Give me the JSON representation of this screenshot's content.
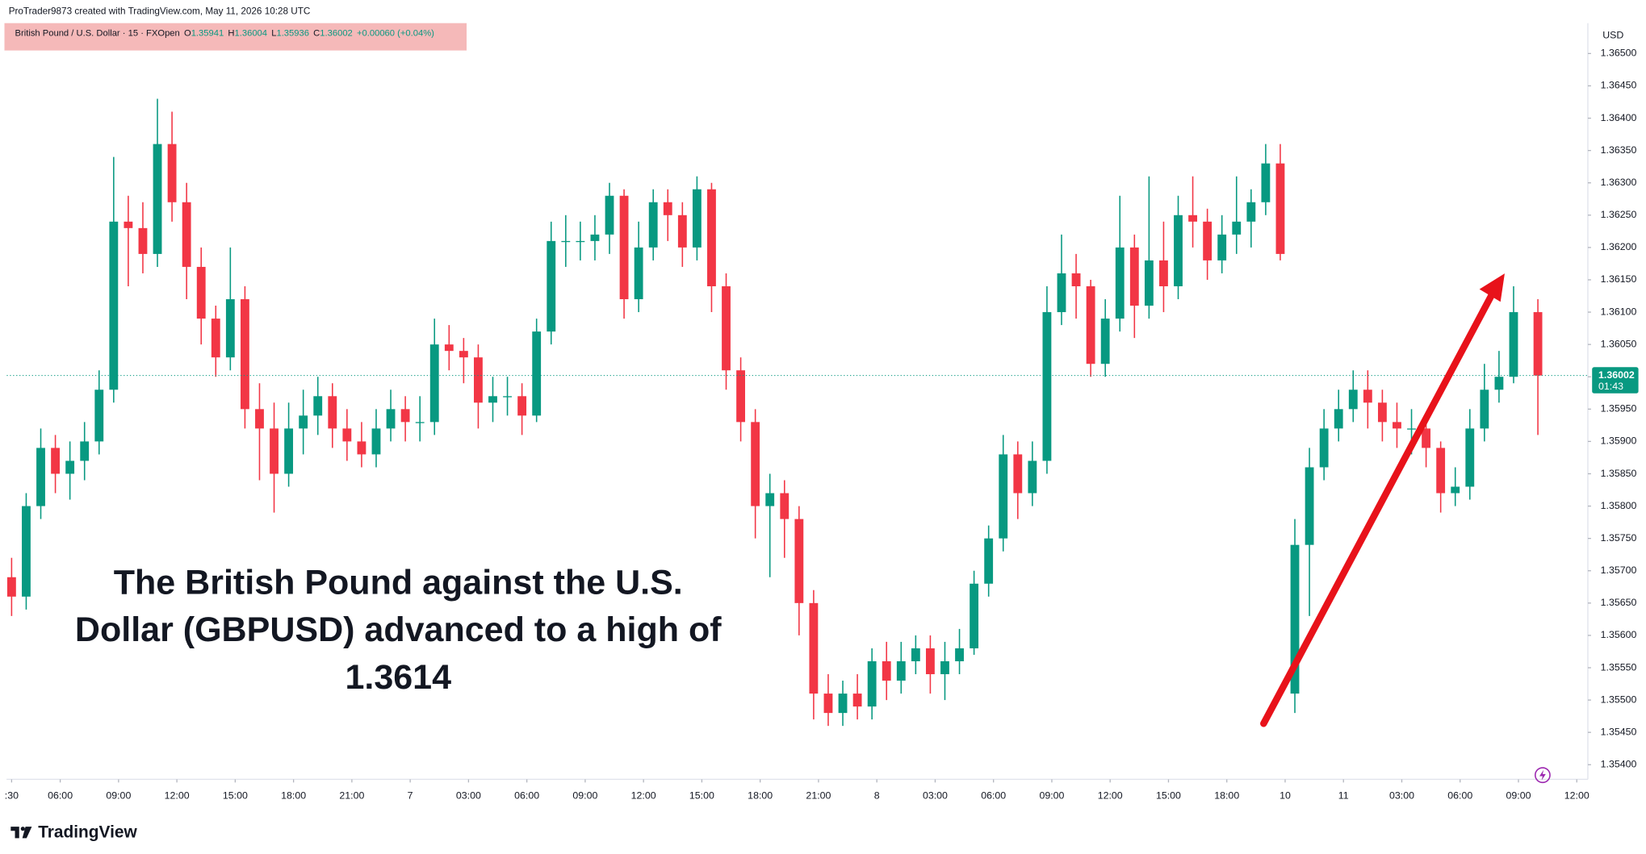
{
  "credit": "ProTrader9873 created with TradingView.com, May 11, 2026 10:28 UTC",
  "brand": "TradingView",
  "chart_data": {
    "type": "candlestick",
    "symbol": "British Pound / U.S. Dollar · 15 · FXOpen",
    "ohlc_legend": [
      {
        "label": "O",
        "value": 1.35941
      },
      {
        "label": "H",
        "value": 1.36004
      },
      {
        "label": "L",
        "value": 1.35936
      },
      {
        "label": "C",
        "value": 1.36002
      }
    ],
    "change": "+0.00060 (+0.04%)",
    "currency": "USD",
    "last_price": 1.36002,
    "countdown": "01:43",
    "annotation": [
      "The British Pound against the U.S.",
      "Dollar (GBPUSD) advanced to a high of",
      "1.3614"
    ],
    "up_color": "#089981",
    "down_color": "#f23645",
    "x": [
      0,
      3,
      6,
      9,
      12,
      15,
      18,
      21,
      24,
      27,
      30,
      33,
      36,
      39,
      42,
      45,
      48,
      51,
      54,
      57,
      60,
      63,
      66,
      69,
      72,
      75,
      78,
      81,
      84,
      87,
      90,
      93,
      96,
      99,
      102,
      105,
      108,
      111,
      114,
      117,
      120,
      123,
      126,
      129,
      132,
      135,
      138,
      141,
      144,
      147,
      150,
      153,
      156,
      159,
      162,
      165,
      168,
      171,
      174,
      177,
      180,
      183,
      186,
      189,
      192,
      195,
      198,
      201,
      204,
      207,
      210,
      213,
      216,
      219,
      222,
      225,
      228,
      231,
      234,
      237,
      240,
      243,
      246,
      249,
      252,
      255,
      258,
      261,
      264,
      267,
      270,
      273,
      276,
      279,
      282,
      285,
      288,
      291,
      294,
      297,
      300,
      303,
      306,
      309,
      314
    ],
    "open": [
      1.3569,
      1.3566,
      1.358,
      1.3589,
      1.3585,
      1.3587,
      1.359,
      1.3598,
      1.3624,
      1.3623,
      1.3619,
      1.3636,
      1.3627,
      1.3617,
      1.3609,
      1.3603,
      1.3612,
      1.3595,
      1.3592,
      1.3585,
      1.3592,
      1.3594,
      1.3597,
      1.3592,
      1.359,
      1.3588,
      1.3592,
      1.3595,
      1.3593,
      1.3593,
      1.3605,
      1.3604,
      1.3603,
      1.3596,
      1.3597,
      1.3597,
      1.3594,
      1.3607,
      1.3621,
      1.3621,
      1.3621,
      1.3622,
      1.3628,
      1.3612,
      1.362,
      1.3627,
      1.3625,
      1.362,
      1.3629,
      1.3614,
      1.3601,
      1.3593,
      1.358,
      1.3582,
      1.3578,
      1.3565,
      1.3551,
      1.3548,
      1.3551,
      1.3549,
      1.3556,
      1.3553,
      1.3556,
      1.3558,
      1.3554,
      1.3556,
      1.3558,
      1.3568,
      1.3575,
      1.3588,
      1.3582,
      1.3587,
      1.361,
      1.3616,
      1.3614,
      1.3602,
      1.3609,
      1.362,
      1.3611,
      1.3618,
      1.3614,
      1.3625,
      1.3624,
      1.3618,
      1.3622,
      1.3624,
      1.3627,
      1.3633,
      1.3551,
      1.3574,
      1.3586,
      1.3592,
      1.3595,
      1.3598,
      1.3596,
      1.3593,
      1.3592,
      1.3592,
      1.3589,
      1.3582,
      1.3583,
      1.3592,
      1.3598,
      1.36,
      1.361
    ],
    "high": [
      1.3572,
      1.3582,
      1.3592,
      1.3591,
      1.359,
      1.3593,
      1.3601,
      1.3634,
      1.3628,
      1.3627,
      1.3643,
      1.3641,
      1.363,
      1.362,
      1.3611,
      1.362,
      1.3614,
      1.3599,
      1.3596,
      1.3596,
      1.3598,
      1.36,
      1.3599,
      1.3595,
      1.3593,
      1.3595,
      1.3598,
      1.3597,
      1.3597,
      1.3609,
      1.3608,
      1.3606,
      1.3605,
      1.36,
      1.36,
      1.3599,
      1.3609,
      1.3624,
      1.3625,
      1.3624,
      1.3625,
      1.363,
      1.3629,
      1.3624,
      1.3629,
      1.3629,
      1.3627,
      1.3631,
      1.363,
      1.3616,
      1.3603,
      1.3595,
      1.3585,
      1.3584,
      1.358,
      1.3567,
      1.3554,
      1.3553,
      1.3554,
      1.3558,
      1.3559,
      1.3559,
      1.356,
      1.356,
      1.3559,
      1.3561,
      1.357,
      1.3577,
      1.3591,
      1.359,
      1.359,
      1.3614,
      1.3622,
      1.3619,
      1.3615,
      1.3612,
      1.3628,
      1.3622,
      1.3631,
      1.3624,
      1.3628,
      1.3631,
      1.3626,
      1.3625,
      1.3631,
      1.3629,
      1.3636,
      1.3636,
      1.3578,
      1.3589,
      1.3595,
      1.3598,
      1.3601,
      1.3601,
      1.3598,
      1.3596,
      1.3595,
      1.3594,
      1.359,
      1.3586,
      1.3595,
      1.3602,
      1.3604,
      1.3614,
      1.3612
    ],
    "low": [
      1.3563,
      1.3564,
      1.3578,
      1.3582,
      1.3581,
      1.3584,
      1.3588,
      1.3596,
      1.3614,
      1.3616,
      1.3617,
      1.3624,
      1.3612,
      1.3605,
      1.36,
      1.3601,
      1.3592,
      1.3584,
      1.3579,
      1.3583,
      1.3588,
      1.3591,
      1.3589,
      1.3587,
      1.3586,
      1.3586,
      1.359,
      1.359,
      1.359,
      1.3591,
      1.3601,
      1.3599,
      1.3592,
      1.3593,
      1.3594,
      1.3591,
      1.3593,
      1.3605,
      1.3617,
      1.3618,
      1.3618,
      1.3619,
      1.3609,
      1.361,
      1.3618,
      1.3621,
      1.3617,
      1.3618,
      1.361,
      1.3598,
      1.359,
      1.3575,
      1.3569,
      1.3572,
      1.356,
      1.3547,
      1.3546,
      1.3546,
      1.3547,
      1.3547,
      1.355,
      1.3551,
      1.3554,
      1.3551,
      1.355,
      1.3554,
      1.3557,
      1.3566,
      1.3573,
      1.3578,
      1.358,
      1.3585,
      1.3608,
      1.3609,
      1.36,
      1.36,
      1.3607,
      1.3606,
      1.3609,
      1.361,
      1.3612,
      1.362,
      1.3615,
      1.3616,
      1.3619,
      1.362,
      1.3625,
      1.3618,
      1.3548,
      1.3563,
      1.3584,
      1.359,
      1.3593,
      1.3592,
      1.359,
      1.3589,
      1.3588,
      1.3586,
      1.3579,
      1.358,
      1.3581,
      1.359,
      1.3596,
      1.3599,
      1.3591
    ],
    "close": [
      1.3566,
      1.358,
      1.3589,
      1.3585,
      1.3587,
      1.359,
      1.3598,
      1.3624,
      1.3623,
      1.3619,
      1.3636,
      1.3627,
      1.3617,
      1.3609,
      1.3603,
      1.3612,
      1.3595,
      1.3592,
      1.3585,
      1.3592,
      1.3594,
      1.3597,
      1.3592,
      1.359,
      1.3588,
      1.3592,
      1.3595,
      1.3593,
      1.3593,
      1.3605,
      1.3604,
      1.3603,
      1.3596,
      1.3597,
      1.3597,
      1.3594,
      1.3607,
      1.3621,
      1.3621,
      1.3621,
      1.3622,
      1.3628,
      1.3612,
      1.362,
      1.3627,
      1.3625,
      1.362,
      1.3629,
      1.3614,
      1.3601,
      1.3593,
      1.358,
      1.3582,
      1.3578,
      1.3565,
      1.3551,
      1.3548,
      1.3551,
      1.3549,
      1.3556,
      1.3553,
      1.3556,
      1.3558,
      1.3554,
      1.3556,
      1.3558,
      1.3568,
      1.3575,
      1.3588,
      1.3582,
      1.3587,
      1.361,
      1.3616,
      1.3614,
      1.3602,
      1.3609,
      1.362,
      1.3611,
      1.3618,
      1.3614,
      1.3625,
      1.3624,
      1.3618,
      1.3622,
      1.3624,
      1.3627,
      1.3633,
      1.3619,
      1.3574,
      1.3586,
      1.3592,
      1.3595,
      1.3598,
      1.3596,
      1.3593,
      1.3592,
      1.3592,
      1.3589,
      1.3582,
      1.3583,
      1.3592,
      1.3598,
      1.36,
      1.361,
      1.36002
    ],
    "xlim": [
      -1,
      324
    ],
    "xticks": [
      {
        "value": 0,
        "label": ":30"
      },
      {
        "value": 10,
        "label": "06:00"
      },
      {
        "value": 22,
        "label": "09:00"
      },
      {
        "value": 34,
        "label": "12:00"
      },
      {
        "value": 46,
        "label": "15:00"
      },
      {
        "value": 58,
        "label": "18:00"
      },
      {
        "value": 70,
        "label": "21:00"
      },
      {
        "value": 82,
        "label": "7"
      },
      {
        "value": 94,
        "label": "03:00"
      },
      {
        "value": 106,
        "label": "06:00"
      },
      {
        "value": 118,
        "label": "09:00"
      },
      {
        "value": 130,
        "label": "12:00"
      },
      {
        "value": 142,
        "label": "15:00"
      },
      {
        "value": 154,
        "label": "18:00"
      },
      {
        "value": 166,
        "label": "21:00"
      },
      {
        "value": 178,
        "label": "8"
      },
      {
        "value": 190,
        "label": "03:00"
      },
      {
        "value": 202,
        "label": "06:00"
      },
      {
        "value": 214,
        "label": "09:00"
      },
      {
        "value": 226,
        "label": "12:00"
      },
      {
        "value": 238,
        "label": "15:00"
      },
      {
        "value": 250,
        "label": "18:00"
      },
      {
        "value": 262,
        "label": "10"
      },
      {
        "value": 274,
        "label": "11"
      },
      {
        "value": 286,
        "label": "03:00"
      },
      {
        "value": 298,
        "label": "06:00"
      },
      {
        "value": 310,
        "label": "09:00"
      },
      {
        "value": 322,
        "label": "12:00"
      }
    ],
    "ylim": [
      1.35379,
      1.36547
    ],
    "yticks": [
      {
        "value": 1.365,
        "label": "1.36500"
      },
      {
        "value": 1.3645,
        "label": "1.36450"
      },
      {
        "value": 1.364,
        "label": "1.36400"
      },
      {
        "value": 1.3635,
        "label": "1.36350"
      },
      {
        "value": 1.363,
        "label": "1.36300"
      },
      {
        "value": 1.3625,
        "label": "1.36250"
      },
      {
        "value": 1.362,
        "label": "1.36200"
      },
      {
        "value": 1.3615,
        "label": "1.36150"
      },
      {
        "value": 1.361,
        "label": "1.36100"
      },
      {
        "value": 1.3605,
        "label": "1.36050"
      },
      {
        "value": 1.36,
        "label": "1.36000"
      },
      {
        "value": 1.3595,
        "label": "1.35950"
      },
      {
        "value": 1.359,
        "label": "1.35900"
      },
      {
        "value": 1.3585,
        "label": "1.35850"
      },
      {
        "value": 1.358,
        "label": "1.35800"
      },
      {
        "value": 1.3575,
        "label": "1.35750"
      },
      {
        "value": 1.357,
        "label": "1.35700"
      },
      {
        "value": 1.3565,
        "label": "1.35650"
      },
      {
        "value": 1.356,
        "label": "1.35600"
      },
      {
        "value": 1.3555,
        "label": "1.35550"
      },
      {
        "value": 1.355,
        "label": "1.35500"
      },
      {
        "value": 1.3545,
        "label": "1.35450"
      },
      {
        "value": 1.354,
        "label": "1.35400"
      }
    ],
    "grid": false
  }
}
